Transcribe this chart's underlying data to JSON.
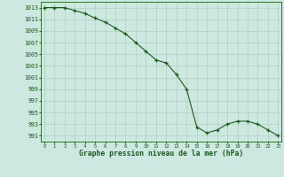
{
  "x": [
    0,
    1,
    2,
    3,
    4,
    5,
    6,
    7,
    8,
    9,
    10,
    11,
    12,
    13,
    14,
    15,
    16,
    17,
    18,
    19,
    20,
    21,
    22,
    23
  ],
  "y": [
    1013.0,
    1013.0,
    1013.0,
    1012.5,
    1012.0,
    1011.2,
    1010.5,
    1009.5,
    1008.5,
    1007.0,
    1005.5,
    1004.0,
    1003.5,
    1001.5,
    999.0,
    992.5,
    991.5,
    992.0,
    993.0,
    993.5,
    993.5,
    993.0,
    992.0,
    991.0
  ],
  "line_color": "#1a5c1a",
  "marker_color": "#1a5c1a",
  "bg_color": "#cce8e0",
  "grid_color": "#aaccbb",
  "xlabel": "Graphe pression niveau de la mer (hPa)",
  "xlabel_color": "#1a5c1a",
  "ylabel_ticks": [
    991,
    993,
    995,
    997,
    999,
    1001,
    1003,
    1005,
    1007,
    1009,
    1011,
    1013
  ],
  "xticks": [
    0,
    1,
    2,
    3,
    4,
    5,
    6,
    7,
    8,
    9,
    10,
    11,
    12,
    13,
    14,
    15,
    16,
    17,
    18,
    19,
    20,
    21,
    22,
    23
  ],
  "ylim": [
    990,
    1014
  ],
  "xlim": [
    -0.3,
    23.3
  ]
}
